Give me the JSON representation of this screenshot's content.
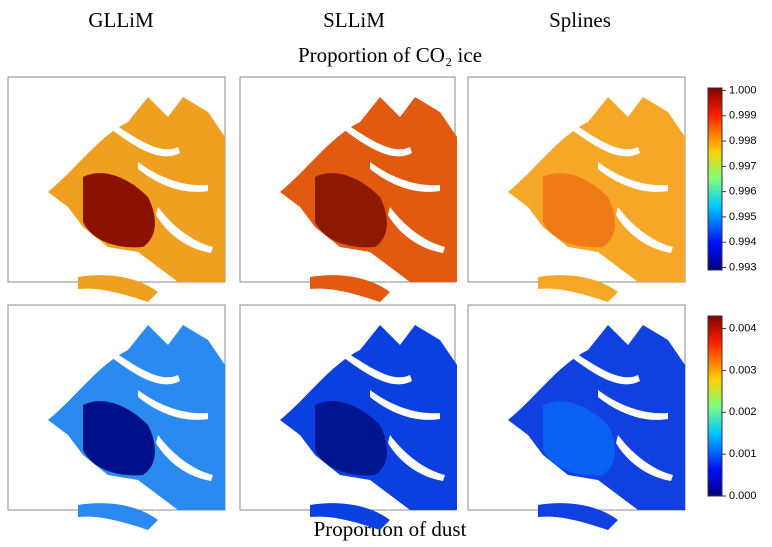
{
  "columns": [
    "GLLiM",
    "SLLiM",
    "Splines"
  ],
  "rows": [
    {
      "title": "Proportion of CO₂ ice",
      "colorbar": {
        "lim": [
          0.9929,
          1.0001
        ],
        "ticks": [
          {
            "value": 1.0,
            "label": "1.000"
          },
          {
            "value": 0.999,
            "label": "0.999"
          },
          {
            "value": 0.998,
            "label": "0.998"
          },
          {
            "value": 0.997,
            "label": "0.997"
          },
          {
            "value": 0.996,
            "label": "0.996"
          },
          {
            "value": 0.995,
            "label": "0.995"
          },
          {
            "value": 0.994,
            "label": "0.994"
          },
          {
            "value": 0.993,
            "label": "0.993"
          }
        ]
      }
    },
    {
      "title": "Proportion of dust",
      "colorbar": {
        "lim": [
          0,
          0.0043
        ],
        "ticks": [
          {
            "value": 0.004,
            "label": "0.004"
          },
          {
            "value": 0.003,
            "label": "0.003"
          },
          {
            "value": 0.002,
            "label": "0.002"
          },
          {
            "value": 0.001,
            "label": "0.001"
          },
          {
            "value": 0,
            "label": "0.000"
          }
        ]
      }
    }
  ]
}
